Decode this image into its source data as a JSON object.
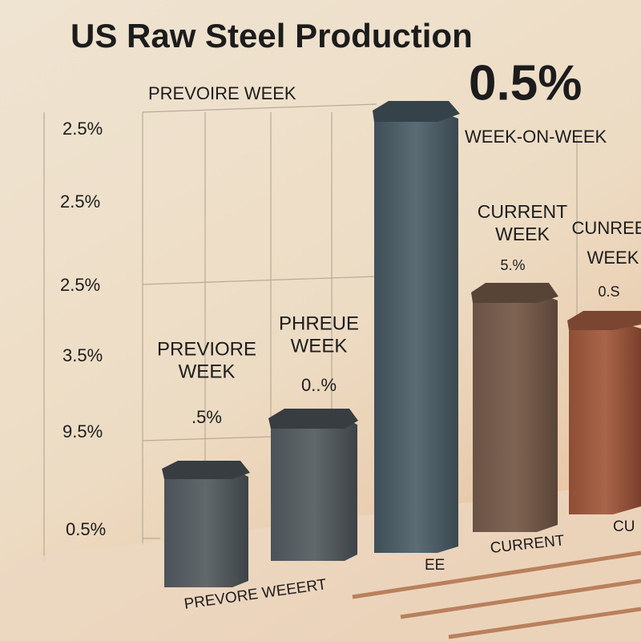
{
  "header": {
    "title": "US Raw Steel Production"
  },
  "callouts": {
    "top_left": "PREVOIRE WEEK",
    "headline_value": "0.5%",
    "headline_caption": "WEEK-ON-WEEK"
  },
  "axis_labels": [
    "2.5%",
    "2.5%",
    "2.5%",
    "3.5%",
    "9.5%",
    "0.5%"
  ],
  "bar_notes": [
    {
      "line1": "PREVIORE",
      "line2": "WEEK",
      "value": ".5%"
    },
    {
      "line1": "PHREUE",
      "line2": "WEEK",
      "value": "0..%"
    },
    {
      "line1": "CURRENT",
      "line2": "WEEK",
      "value": "5.%"
    },
    {
      "line1": "CUNREE",
      "line2": "WEEK",
      "value": "0.S"
    }
  ],
  "floor_labels": [
    "PREVORE WEEERT",
    "EE",
    "CURRENT",
    "CU"
  ]
}
